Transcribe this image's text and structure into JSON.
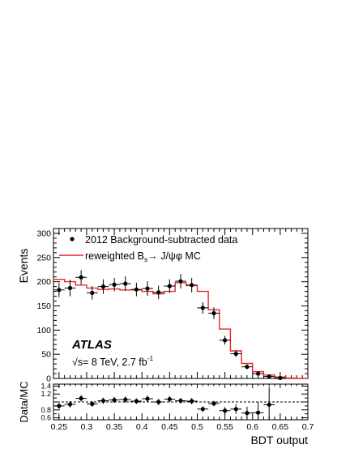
{
  "chart_data": [
    {
      "type": "scatter",
      "ylabel": "Events",
      "xlim": [
        0.24,
        0.7
      ],
      "ylim": [
        0,
        310
      ],
      "y_ticks": [
        0,
        50,
        100,
        150,
        200,
        250,
        300
      ],
      "legend_position": "top-left",
      "legend": {
        "data_label": "2012 Background-subtracted data",
        "mc_label_prefix": "reweighted B",
        "mc_label_sub": "s",
        "mc_label_suffix": "→ J/ψφ MC"
      },
      "annotations": {
        "experiment": "ATLAS",
        "energy_prefix": "√s= 8 TeV, 2.7 fb",
        "energy_sup": "-1"
      },
      "colors": {
        "mc": "#e8262b",
        "data": "#000000"
      },
      "series": [
        {
          "name": "2012 Background-subtracted data",
          "style": "points-with-errors",
          "x": [
            0.25,
            0.27,
            0.29,
            0.31,
            0.33,
            0.35,
            0.37,
            0.39,
            0.41,
            0.43,
            0.45,
            0.47,
            0.49,
            0.51,
            0.53,
            0.55,
            0.57,
            0.59,
            0.61,
            0.63,
            0.65
          ],
          "y": [
            183,
            187,
            209,
            177,
            190,
            194,
            196,
            184,
            186,
            178,
            191,
            201,
            193,
            146,
            135,
            79,
            51,
            24,
            10,
            4,
            1
          ],
          "err": [
            15,
            17,
            15,
            14,
            15,
            14,
            15,
            14,
            15,
            14,
            14,
            15,
            15,
            12,
            12,
            9,
            7,
            5,
            4,
            3,
            2
          ]
        },
        {
          "name": "reweighted Bₛ→ J/ψφ MC",
          "style": "step-histogram",
          "bin_edges": [
            0.24,
            0.26,
            0.28,
            0.3,
            0.32,
            0.34,
            0.36,
            0.38,
            0.4,
            0.42,
            0.44,
            0.46,
            0.48,
            0.5,
            0.52,
            0.54,
            0.56,
            0.58,
            0.6,
            0.62,
            0.64,
            0.66,
            0.68,
            0.7
          ],
          "values": [
            205,
            200,
            193,
            187,
            184,
            185,
            183,
            183,
            180,
            175,
            180,
            198,
            192,
            180,
            142,
            102,
            57,
            31,
            14,
            7,
            3,
            1,
            0
          ]
        }
      ]
    },
    {
      "type": "scatter",
      "xlabel": "BDT output",
      "ylabel": "Data/MC",
      "xlim": [
        0.24,
        0.7
      ],
      "ylim": [
        0.55,
        1.45
      ],
      "y_ticks": [
        0.6,
        0.8,
        1.2,
        1.4
      ],
      "x_ticks": [
        0.25,
        0.3,
        0.35,
        0.4,
        0.45,
        0.5,
        0.55,
        0.6,
        0.65,
        0.7
      ],
      "reference_line": 1.0,
      "series": [
        {
          "name": "",
          "x": [
            0.25,
            0.27,
            0.29,
            0.31,
            0.33,
            0.35,
            0.37,
            0.39,
            0.41,
            0.43,
            0.45,
            0.47,
            0.49,
            0.51,
            0.53,
            0.55,
            0.57,
            0.59,
            0.61,
            0.63
          ],
          "y": [
            0.9,
            0.94,
            1.09,
            0.95,
            1.03,
            1.05,
            1.06,
            1.02,
            1.08,
            1.0,
            1.07,
            1.03,
            1.02,
            0.82,
            0.96,
            0.78,
            0.82,
            0.72,
            0.73,
            0.93
          ],
          "err": [
            0.07,
            0.08,
            0.08,
            0.07,
            0.08,
            0.08,
            0.08,
            0.07,
            0.08,
            0.08,
            0.08,
            0.07,
            0.08,
            0.07,
            0.07,
            0.09,
            0.12,
            0.16,
            0.28,
            0.45
          ]
        }
      ]
    }
  ]
}
